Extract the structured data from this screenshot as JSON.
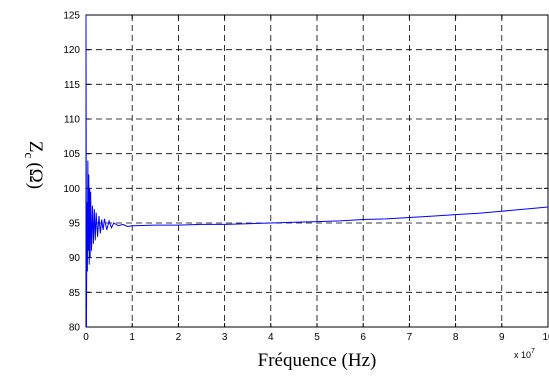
{
  "chart_data": {
    "type": "line",
    "xlabel": "Fréquence (Hz)",
    "ylabel": "Z",
    "ylabel_sub": "c",
    "ylabel_unit": "(Ω)",
    "x_multiplier": "x 10",
    "x_multiplier_exp": "7",
    "xlim": [
      0,
      10
    ],
    "ylim": [
      80,
      125
    ],
    "xticks": [
      "0",
      "1",
      "2",
      "3",
      "4",
      "5",
      "6",
      "7",
      "8",
      "9",
      "10"
    ],
    "yticks": [
      "80",
      "85",
      "90",
      "95",
      "100",
      "105",
      "110",
      "115",
      "120",
      "125"
    ],
    "grid": true,
    "grid_style": "dashed",
    "line_color": "#0000ff",
    "series": [
      {
        "x": [
          0,
          0.01,
          0.02,
          0.03,
          0.04,
          0.05,
          0.06,
          0.07,
          0.08,
          0.09,
          0.1,
          0.12,
          0.14,
          0.16,
          0.18,
          0.2,
          0.22,
          0.25,
          0.28,
          0.31,
          0.34,
          0.37,
          0.4,
          0.45,
          0.5,
          0.55,
          0.6,
          0.7,
          0.8,
          0.9,
          1,
          1.5,
          2,
          2.5,
          3,
          3.5,
          4,
          4.5,
          5,
          5.5,
          6,
          6.5,
          7,
          7.5,
          8,
          8.5,
          9,
          9.5,
          10
        ],
        "y": [
          125,
          80,
          98,
          88,
          104,
          91,
          102,
          89,
          100,
          90,
          99.5,
          91,
          97.5,
          92,
          97,
          92.5,
          96.5,
          93,
          96,
          93.5,
          95.5,
          94,
          95.6,
          94,
          95.3,
          94.3,
          95,
          94.6,
          94.8,
          94.5,
          94.6,
          94.7,
          94.7,
          94.8,
          94.8,
          94.9,
          95.0,
          95.1,
          95.2,
          95.3,
          95.5,
          95.6,
          95.8,
          96.0,
          96.2,
          96.4,
          96.7,
          97.0,
          97.3
        ]
      }
    ]
  }
}
